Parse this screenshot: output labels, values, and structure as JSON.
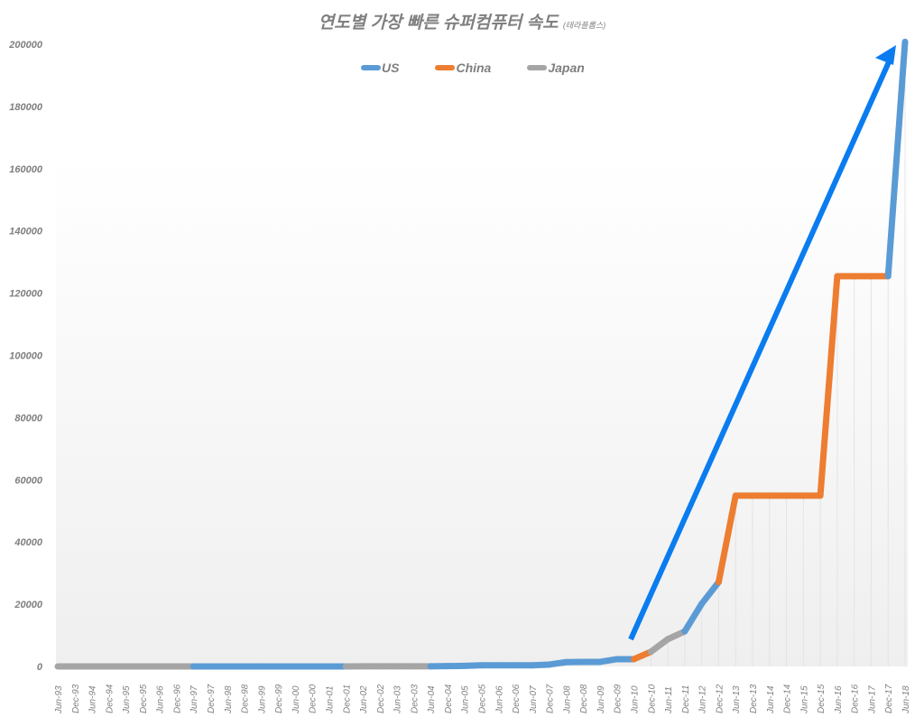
{
  "title": "연도별 가장 빠른 슈퍼컴퓨터 속도",
  "title_sub": "(테라플롭스)",
  "legend": [
    {
      "name": "US",
      "color": "#5b9bd5"
    },
    {
      "name": "China",
      "color": "#ed7d31"
    },
    {
      "name": "Japan",
      "color": "#a5a5a5"
    }
  ],
  "arrow_color": "#0a7cf0",
  "chart_data": {
    "type": "line",
    "title": "연도별 가장 빠른 슈퍼컴퓨터 속도 (테라플롭스)",
    "xlabel": "",
    "ylabel": "",
    "ylim": [
      0,
      200000
    ],
    "yticks": [
      0,
      20000,
      40000,
      60000,
      80000,
      100000,
      120000,
      140000,
      160000,
      180000,
      200000
    ],
    "grid": "vertical light lines in 2010-2018 region",
    "legend_position": "top",
    "categories": [
      "Jun-93",
      "Dec-93",
      "Jun-94",
      "Dec-94",
      "Jun-95",
      "Dec-95",
      "Jun-96",
      "Dec-96",
      "Jun-97",
      "Dec-97",
      "Jun-98",
      "Dec-98",
      "Jun-99",
      "Dec-99",
      "Jun-00",
      "Dec-00",
      "Jun-01",
      "Dec-01",
      "Jun-02",
      "Dec-02",
      "Jun-03",
      "Dec-03",
      "Jun-04",
      "Dec-04",
      "Jun-05",
      "Dec-05",
      "Jun-06",
      "Dec-06",
      "Jun-07",
      "Dec-07",
      "Jun-08",
      "Dec-08",
      "Jun-09",
      "Dec-09",
      "Jun-10",
      "Dec-10",
      "Jun-11",
      "Dec-11",
      "Jun-12",
      "Dec-12",
      "Jun-13",
      "Dec-13",
      "Jun-14",
      "Dec-14",
      "Jun-15",
      "Dec-15",
      "Jun-16",
      "Dec-16",
      "Jun-17",
      "Dec-17",
      "Jun-18"
    ],
    "values": [
      131,
      236,
      236,
      236,
      236,
      236,
      368,
      368,
      1453,
      1830,
      1830,
      3207,
      3207,
      3207,
      3207,
      12288,
      12288,
      12288,
      40960,
      40960,
      40960,
      40960,
      40960,
      91750,
      183500,
      367000,
      367000,
      367000,
      367000,
      596378,
      1375780,
      1456700,
      1456700,
      2331000,
      2331000,
      4701000,
      8773630,
      11280384,
      20132659,
      27112550,
      54902400,
      54902400,
      54902400,
      54902400,
      54902400,
      54902400,
      125435900,
      125435900,
      125435900,
      125435900,
      200794880
    ],
    "values_note": "values above in GFLOPS-scale raw; plotted values in TFLOPS listed in series",
    "series": [
      {
        "name": "Combined (colored by country)",
        "values": [
          0.13,
          0.24,
          0.24,
          0.24,
          0.24,
          0.24,
          0.37,
          0.37,
          1.45,
          1.83,
          1.83,
          3.2,
          3.2,
          3.2,
          3.2,
          12.3,
          12.3,
          12.3,
          41,
          41,
          41,
          41,
          41,
          92,
          184,
          367,
          367,
          367,
          367,
          596,
          1376,
          1457,
          1457,
          2331,
          2331,
          4701,
          8774,
          11280,
          20133,
          27113,
          54902,
          54902,
          54902,
          54902,
          54902,
          54902,
          125436,
          125436,
          125436,
          125436,
          200795
        ]
      }
    ],
    "country_by_point": [
      "US",
      "Japan",
      "Japan",
      "Japan",
      "Japan",
      "Japan",
      "Japan",
      "Japan",
      "Japan",
      "US",
      "US",
      "US",
      "US",
      "US",
      "US",
      "US",
      "US",
      "US",
      "Japan",
      "Japan",
      "Japan",
      "Japan",
      "Japan",
      "US",
      "US",
      "US",
      "US",
      "US",
      "US",
      "US",
      "US",
      "US",
      "US",
      "US",
      "US",
      "China",
      "Japan",
      "Japan",
      "US",
      "US",
      "China",
      "China",
      "China",
      "China",
      "China",
      "China",
      "China",
      "China",
      "China",
      "China",
      "US"
    ],
    "annotations": [
      {
        "type": "arrow",
        "from": "Jun-10 (~8000)",
        "to": "Dec-17 (~200000)",
        "color": "#0a7cf0"
      }
    ]
  }
}
